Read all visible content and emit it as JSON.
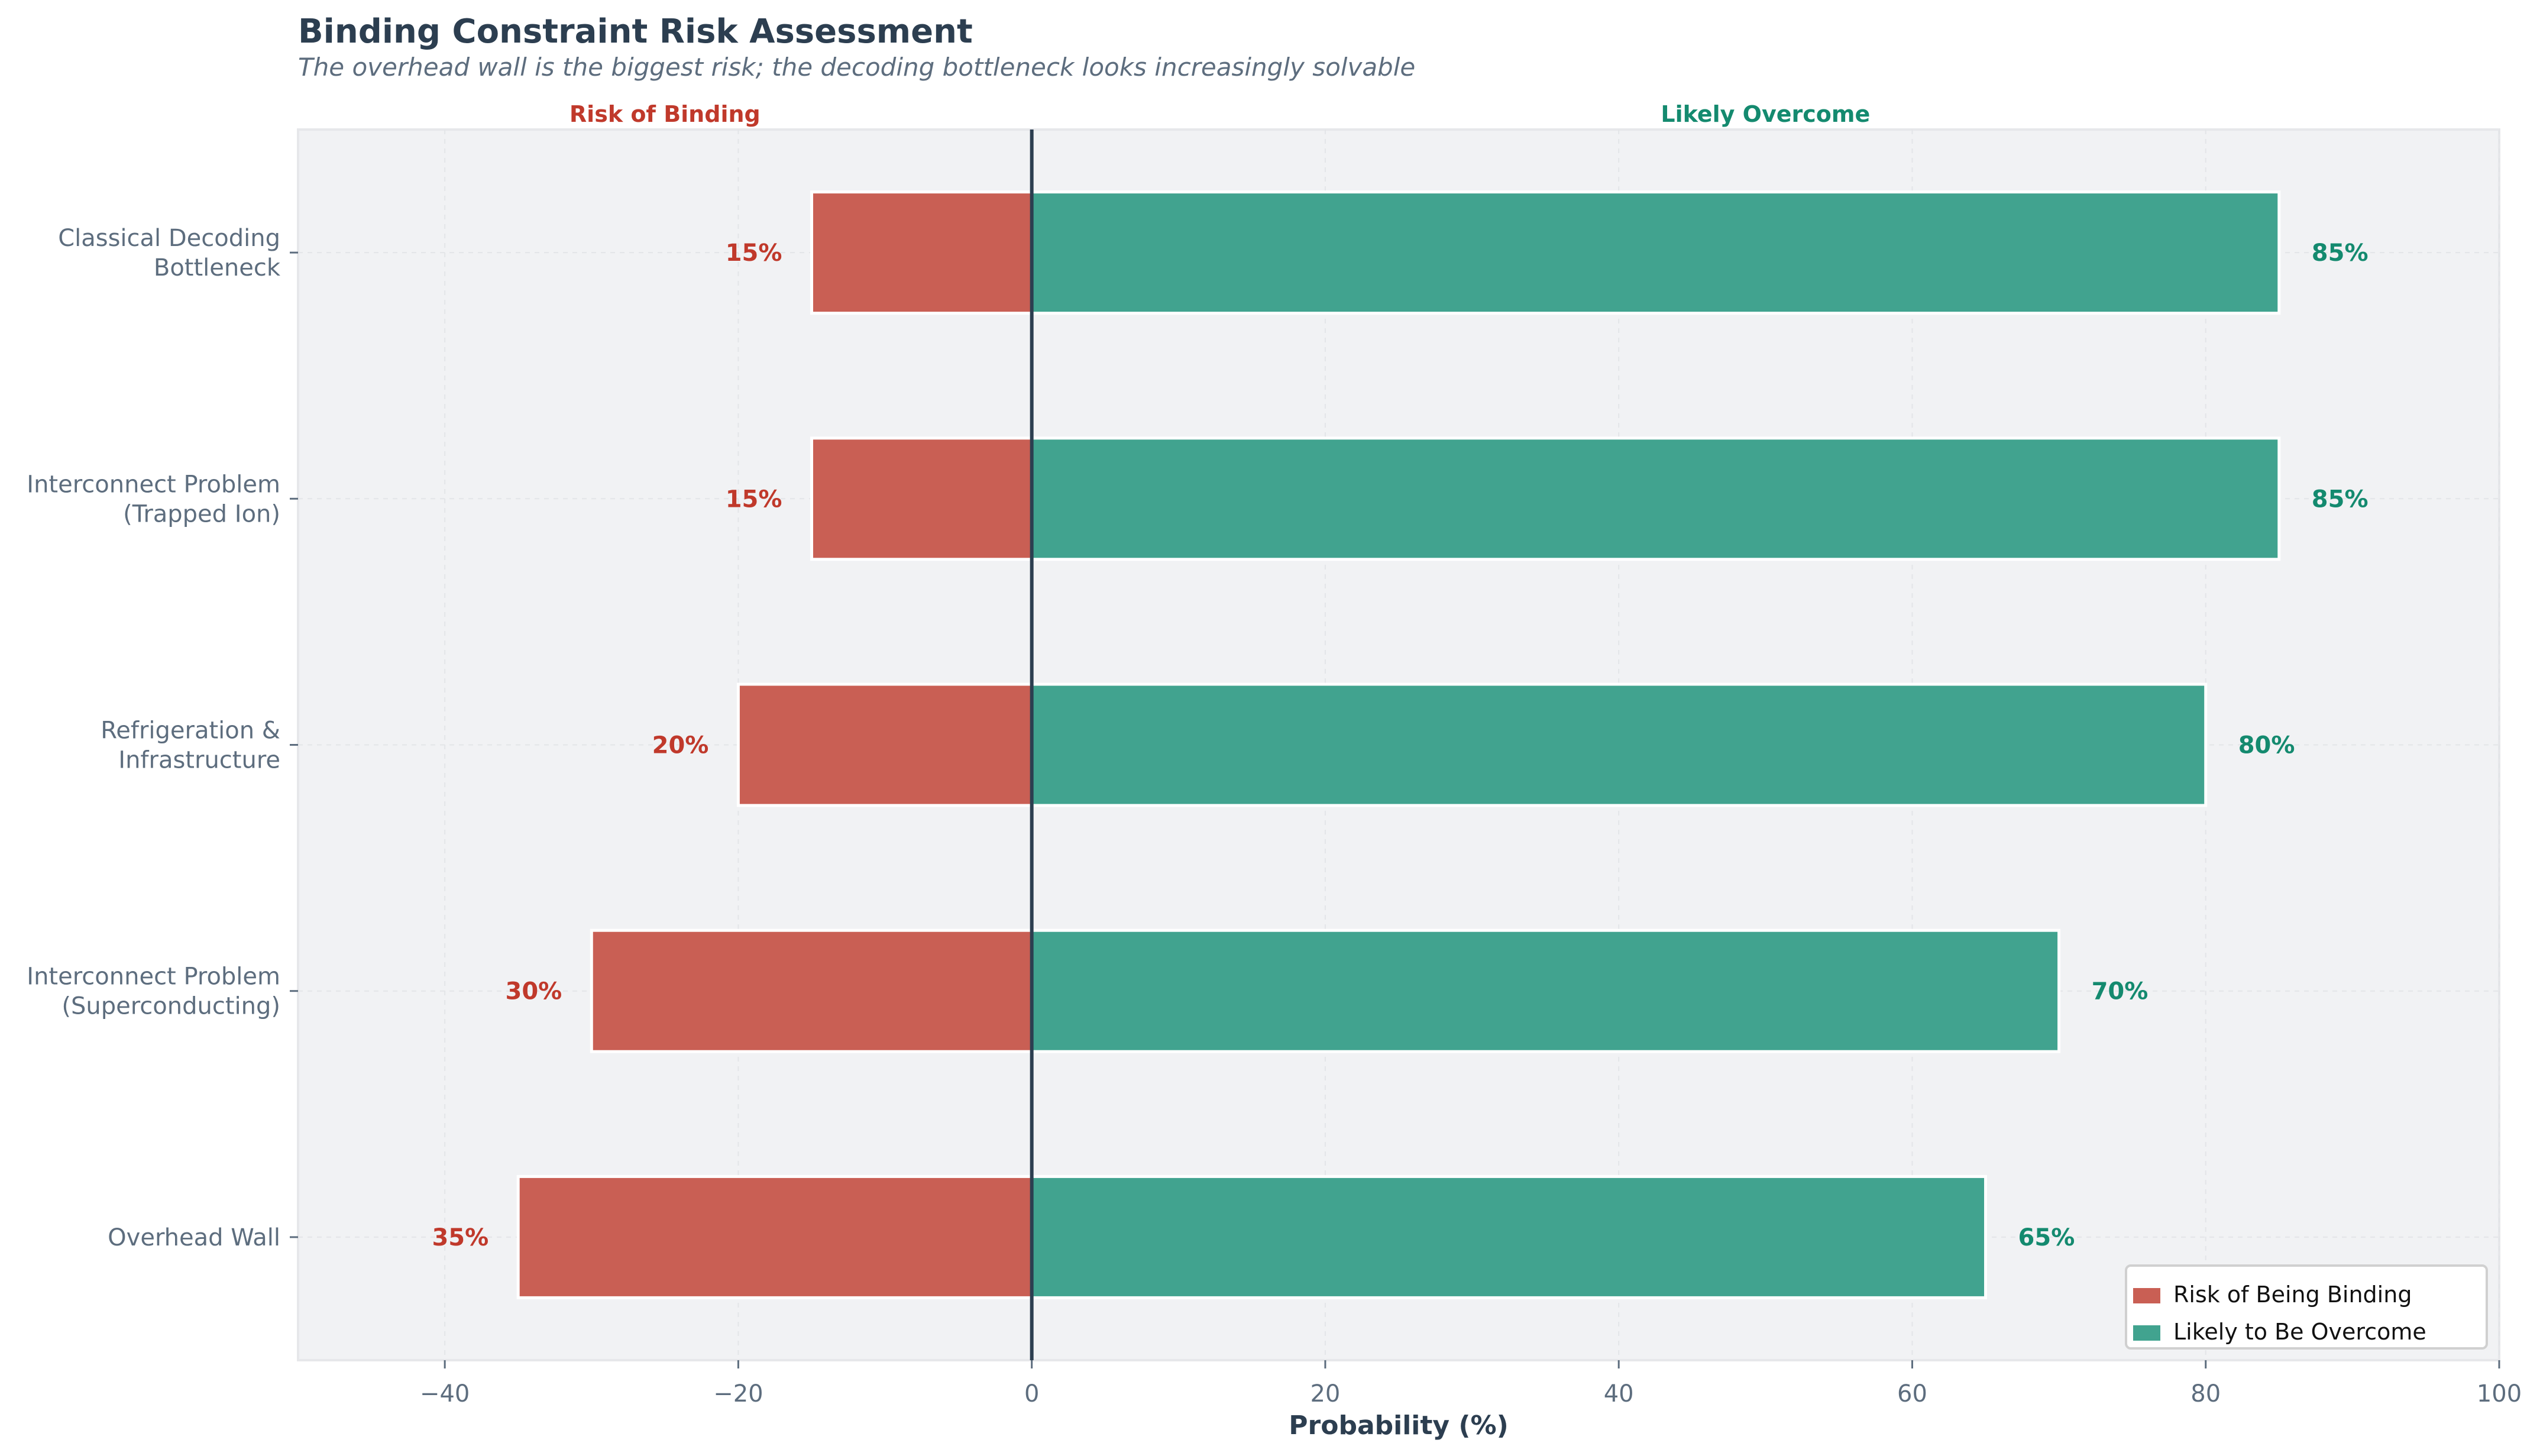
{
  "chart_data": {
    "type": "bar",
    "orientation": "horizontal-diverging",
    "title": "Binding Constraint Risk Assessment",
    "subtitle": "The overhead wall is the biggest risk; the decoding bottleneck looks increasingly solvable",
    "xlabel": "Probability (%)",
    "ylabel": "",
    "xlim": [
      -50,
      100
    ],
    "xticks": [
      -40,
      -20,
      0,
      20,
      40,
      60,
      80,
      100
    ],
    "xtick_labels": [
      "−40",
      "−20",
      "0",
      "20",
      "40",
      "60",
      "80",
      "100"
    ],
    "grid": true,
    "legend_position": "bottom-right",
    "side_labels": {
      "left": "Risk of Binding",
      "right": "Likely Overcome"
    },
    "categories": [
      "Classical Decoding\nBottleneck",
      "Interconnect Problem\n(Trapped Ion)",
      "Refrigeration &\nInfrastructure",
      "Interconnect Problem\n(Superconducting)",
      "Overhead Wall"
    ],
    "series": [
      {
        "name": "Risk of Being Binding",
        "values": [
          15,
          15,
          20,
          30,
          35
        ],
        "labels": [
          "15%",
          "15%",
          "20%",
          "30%",
          "35%"
        ],
        "color": "#C95F54",
        "label_color": "#C0392B"
      },
      {
        "name": "Likely to Be Overcome",
        "values": [
          85,
          85,
          80,
          70,
          65
        ],
        "labels": [
          "85%",
          "85%",
          "80%",
          "70%",
          "65%"
        ],
        "color": "#41A38F",
        "label_color": "#148A6F"
      }
    ],
    "colors": {
      "text": "#2C3E50",
      "muted": "#5D6D7E",
      "plot_bg": "#F1F2F4"
    }
  }
}
